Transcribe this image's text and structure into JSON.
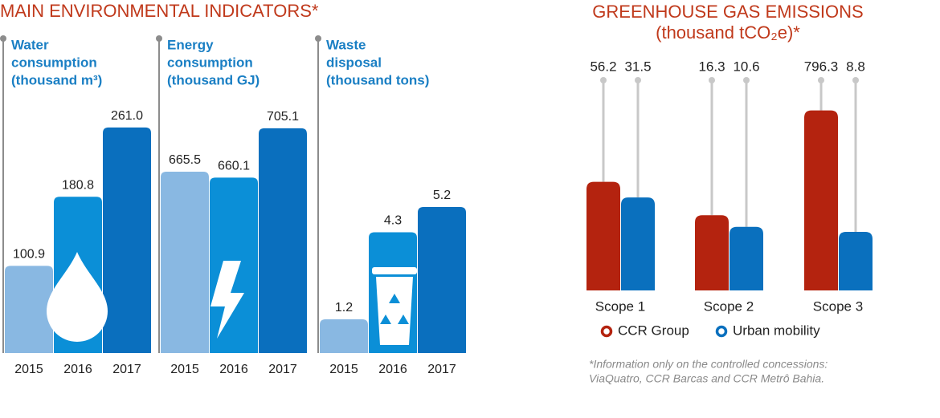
{
  "indicators": {
    "title": "MAIN ENVIRONMENTAL INDICATORS*",
    "charts": [
      {
        "type": "bar",
        "title_lines": [
          "Water",
          "consumption",
          "(thousand m³)"
        ],
        "categories": [
          "2015",
          "2016",
          "2017"
        ],
        "values": [
          100.9,
          180.8,
          261.0
        ],
        "value_labels": [
          "100.9",
          "180.8",
          "261.0"
        ],
        "colors": [
          "#89b8e2",
          "#0b8fd7",
          "#0a6fbe"
        ],
        "ylim": [
          0,
          260
        ]
      },
      {
        "type": "bar",
        "title_lines": [
          "Energy",
          "consumption",
          "(thousand GJ)"
        ],
        "categories": [
          "2015",
          "2016",
          "2017"
        ],
        "values": [
          665.5,
          660.1,
          705.1
        ],
        "value_labels": [
          "665.5",
          "660.1",
          "705.1"
        ],
        "colors": [
          "#89b8e2",
          "#0b8fd7",
          "#0a6fbe"
        ],
        "ylim": [
          500,
          705
        ]
      },
      {
        "type": "bar",
        "title_lines": [
          "Waste",
          "disposal",
          "(thousand tons)"
        ],
        "categories": [
          "2015",
          "2016",
          "2017"
        ],
        "values": [
          1.2,
          4.3,
          5.2
        ],
        "value_labels": [
          "1.2",
          "4.3",
          "5.2"
        ],
        "colors": [
          "#89b8e2",
          "#0b8fd7",
          "#0a6fbe"
        ],
        "ylim": [
          0,
          8
        ]
      }
    ]
  },
  "chart_data": {
    "type": "bar",
    "title_lines": [
      "GREENHOUSE GAS EMISSIONS",
      "(thousand tCO₂e)*"
    ],
    "categories": [
      "Scope 1",
      "Scope 2",
      "Scope 3"
    ],
    "series": [
      {
        "name": "CCR Group",
        "color": "#b4230f",
        "values": [
          56.2,
          16.3,
          796.3
        ]
      },
      {
        "name": "Urban mobility",
        "color": "#0a70be",
        "values": [
          31.5,
          10.6,
          8.8
        ]
      }
    ],
    "log_scale": true,
    "ylim": [
      1,
      1000
    ]
  },
  "footnote_lines": [
    "*Information only on the controlled concessions:",
    "ViaQuatro, CCR Barcas and CCR Metrô Bahia."
  ]
}
